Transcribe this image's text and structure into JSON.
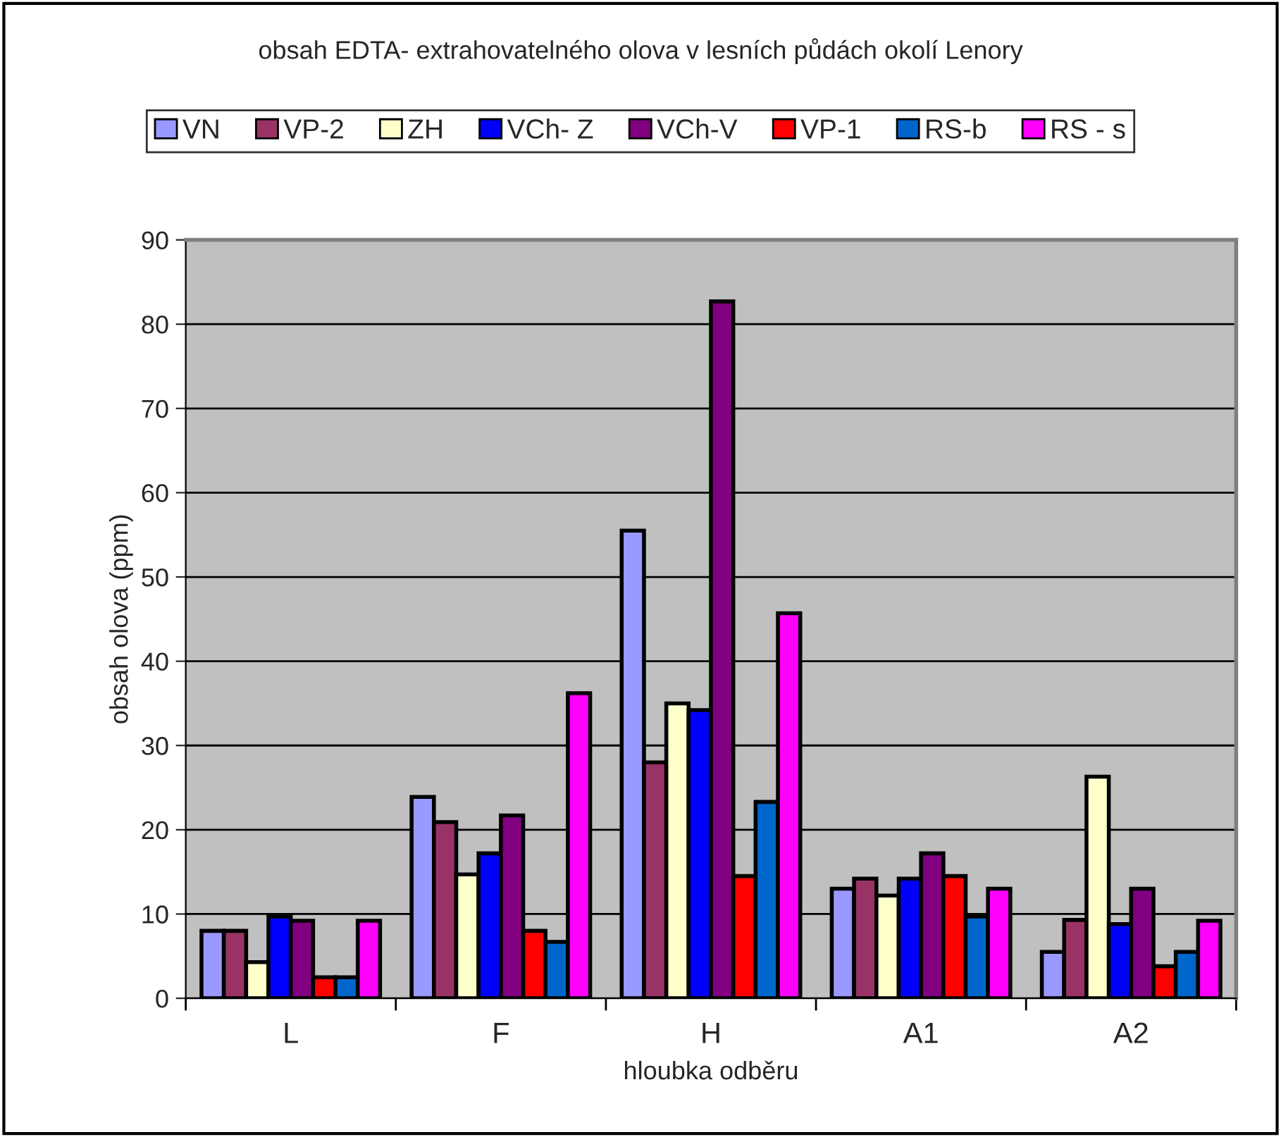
{
  "chart_data": {
    "type": "bar",
    "title": "obsah EDTA- extrahovatelného olova v lesních půdách okolí Lenory",
    "xlabel": "hloubka odběru",
    "ylabel": "obsah olova (ppm)",
    "categories": [
      "L",
      "F",
      "H",
      "A1",
      "A2"
    ],
    "series": [
      {
        "name": "VN",
        "color": "#9999ff",
        "values": [
          8,
          23.9,
          55.5,
          13,
          5.5
        ]
      },
      {
        "name": "VP-2",
        "color": "#993366",
        "values": [
          8,
          20.9,
          28,
          14.2,
          9.3
        ]
      },
      {
        "name": "ZH",
        "color": "#ffffcc",
        "values": [
          4.3,
          14.7,
          35,
          12.2,
          26.3
        ]
      },
      {
        "name": "VCh- Z",
        "color": "#0000ff",
        "values": [
          9.7,
          17.2,
          34.2,
          14.2,
          8.8
        ]
      },
      {
        "name": "VCh-V",
        "color": "#800080",
        "values": [
          9.2,
          21.7,
          82.7,
          17.2,
          13
        ]
      },
      {
        "name": "VP-1",
        "color": "#ff0000",
        "values": [
          2.5,
          8,
          14.5,
          14.5,
          3.8
        ]
      },
      {
        "name": "RS-b",
        "color": "#0066cc",
        "values": [
          2.5,
          6.7,
          23.3,
          9.7,
          5.5
        ]
      },
      {
        "name": "RS - s",
        "color": "#ff00ff",
        "values": [
          9.2,
          36.2,
          45.7,
          13,
          9.2
        ]
      }
    ],
    "ylim": [
      0,
      90
    ],
    "yticks": [
      0,
      10,
      20,
      30,
      40,
      50,
      60,
      70,
      80,
      90
    ],
    "grid": "y",
    "legend": "top"
  }
}
